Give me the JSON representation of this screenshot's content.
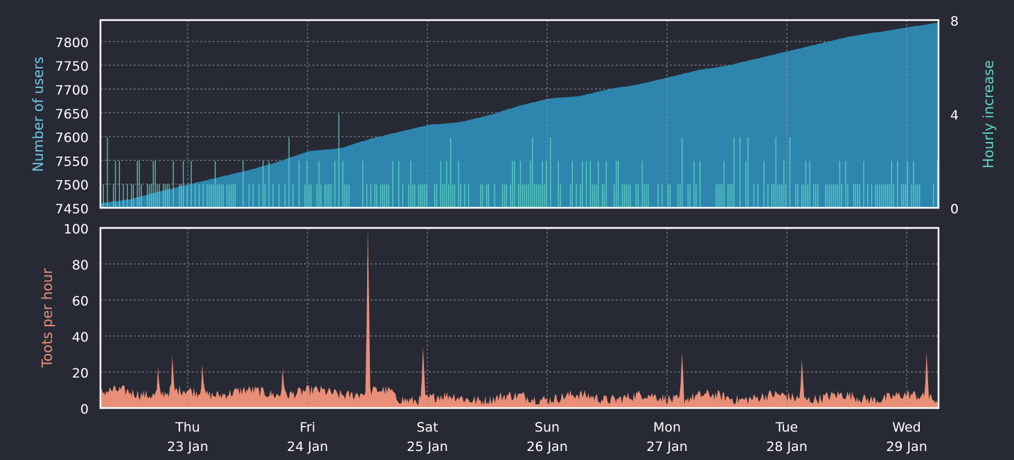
{
  "colors": {
    "background": "#272a35",
    "frame": "#ffffff",
    "grid": "#8a8d96",
    "tick_text": "#ffffff",
    "users_area": "#2e86ae",
    "hourly_bars": "#5fd6c4",
    "toots_area": "#e98f77",
    "users_label": "#6ec6e6",
    "hourly_label": "#5fd6c4",
    "toots_label": "#e98f77"
  },
  "chart_data": [
    {
      "id": "users",
      "type": "area",
      "ylabel": "Number of users",
      "ylim": [
        7450,
        7845
      ],
      "yticks": [
        7450,
        7500,
        7550,
        7600,
        7650,
        7700,
        7750,
        7800
      ],
      "grid": true,
      "x_range_days": [
        "22 Jan",
        "29 Jan"
      ],
      "series": [
        {
          "values_hourly_sampled": [
            7460,
            7468,
            7485,
            7500,
            7515,
            7530,
            7548,
            7570,
            7575,
            7595,
            7610,
            7625,
            7630,
            7645,
            7665,
            7680,
            7685,
            7700,
            7710,
            7725,
            7740,
            7750,
            7765,
            7780,
            7795,
            7810,
            7820,
            7830,
            7840
          ]
        }
      ],
      "secondary_axis": {
        "ylabel": "Hourly increase",
        "ylim": [
          0,
          8
        ],
        "yticks": [
          0,
          4,
          8
        ],
        "type": "bar"
      }
    },
    {
      "id": "toots",
      "type": "area",
      "ylabel": "Toots per hour",
      "ylim": [
        0,
        100
      ],
      "yticks": [
        0,
        20,
        40,
        60,
        80,
        100
      ],
      "grid": true,
      "peaks": [
        {
          "day": "22 Jan",
          "approx_hour": 5,
          "value": 20
        },
        {
          "day": "22 Jan",
          "approx_hour": 18,
          "value": 23
        },
        {
          "day": "22 Jan",
          "approx_hour": 21,
          "value": 29
        },
        {
          "day": "23 Jan",
          "approx_hour": 3,
          "value": 24
        },
        {
          "day": "23 Jan",
          "approx_hour": 19,
          "value": 22
        },
        {
          "day": "24 Jan",
          "approx_hour": 23,
          "value": 34
        },
        {
          "day": "24 Jan",
          "approx_hour": 12,
          "value": 101
        },
        {
          "day": "27 Jan",
          "approx_hour": 3,
          "value": 31
        },
        {
          "day": "28 Jan",
          "approx_hour": 3,
          "value": 27
        },
        {
          "day": "29 Jan",
          "approx_hour": 4,
          "value": 31
        }
      ]
    }
  ],
  "x_axis": {
    "ticks": [
      {
        "weekday": "Thu",
        "date": "23 Jan"
      },
      {
        "weekday": "Fri",
        "date": "24 Jan"
      },
      {
        "weekday": "Sat",
        "date": "25 Jan"
      },
      {
        "weekday": "Sun",
        "date": "26 Jan"
      },
      {
        "weekday": "Mon",
        "date": "27 Jan"
      },
      {
        "weekday": "Tue",
        "date": "28 Jan"
      },
      {
        "weekday": "Wed",
        "date": "29 Jan"
      }
    ]
  }
}
